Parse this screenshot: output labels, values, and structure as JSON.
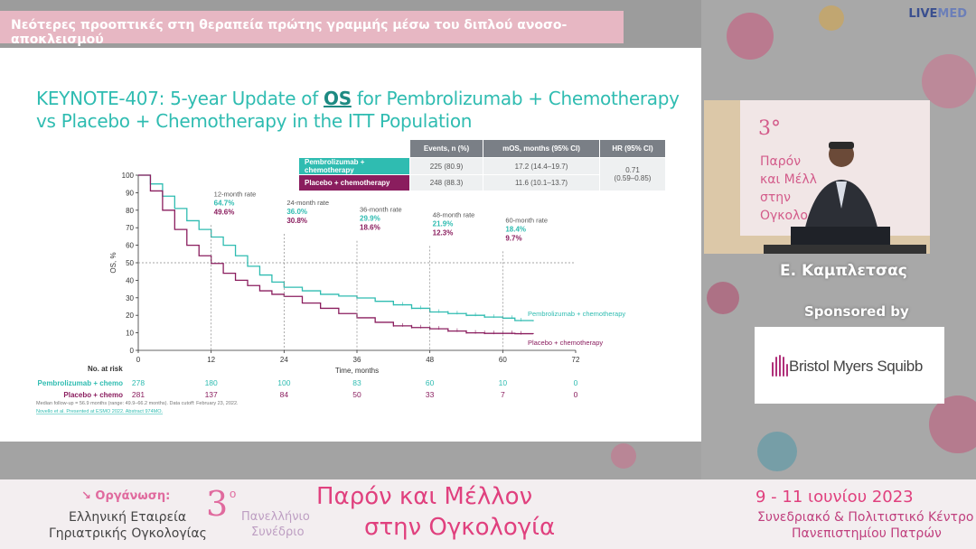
{
  "banner": {
    "title": "Νεότερες προοπτικές στη θεραπεία πρώτης γραμμής μέσω του διπλού ανοσο-αποκλεισμού"
  },
  "brand": {
    "live": "LIVE",
    "med": "MED"
  },
  "slide": {
    "title_line1_a": "KEYNOTE-407: 5-year Update of ",
    "title_os": "OS",
    "title_line1_b": " for Pembrolizumab + Chemotherapy",
    "title_line2": "vs Placebo + Chemotherapy in the ITT Population",
    "table": {
      "headers": [
        "Events, n (%)",
        "mOS, months (95% CI)",
        "HR (95% CI)"
      ],
      "rows": [
        {
          "label": "Pembrolizumab + chemotherapy",
          "events": "225 (80.9)",
          "mos": "17.2 (14.4–19.7)"
        },
        {
          "label": "Placebo + chemotherapy",
          "events": "248 (88.3)",
          "mos": "11.6 (10.1–13.7)"
        }
      ],
      "hr_value": "0.71",
      "hr_ci": "(0.59–0.85)"
    },
    "footnote1": "Median follow-up = 56.9 months (range: 49.9–66.2 months). Data cutoff: February 23, 2022.",
    "footnote2": "Novello et al. Presented at ESMO 2022. Abstract 974MO."
  },
  "chart_data": {
    "type": "line",
    "xlabel": "Time, months",
    "ylabel": "OS, %",
    "xlim": [
      0,
      72
    ],
    "ylim": [
      0,
      100
    ],
    "x_ticks": [
      0,
      12,
      24,
      36,
      48,
      60,
      72
    ],
    "y_ticks": [
      0,
      10,
      20,
      30,
      40,
      50,
      60,
      70,
      80,
      90,
      100
    ],
    "reference_line_y": 50,
    "colors": {
      "pembro": "#2fbcb1",
      "placebo": "#8a1d5e"
    },
    "series": [
      {
        "name": "Pembrolizumab + chemotherapy",
        "x": [
          0,
          2,
          4,
          6,
          8,
          10,
          12,
          14,
          16,
          18,
          20,
          22,
          24,
          27,
          30,
          33,
          36,
          39,
          42,
          45,
          48,
          51,
          54,
          57,
          60,
          62,
          65
        ],
        "y": [
          100,
          95,
          88,
          81,
          74,
          69,
          64.7,
          60,
          54,
          48,
          43,
          39,
          36.0,
          34,
          32,
          31,
          29.9,
          28,
          26,
          24,
          21.9,
          21,
          20,
          19,
          18.4,
          17,
          16.6
        ]
      },
      {
        "name": "Placebo + chemotherapy",
        "x": [
          0,
          2,
          4,
          6,
          8,
          10,
          12,
          14,
          16,
          18,
          20,
          22,
          24,
          27,
          30,
          33,
          36,
          39,
          42,
          45,
          48,
          51,
          54,
          57,
          60,
          62,
          65
        ],
        "y": [
          100,
          91,
          80,
          69,
          60,
          54,
          49.6,
          44,
          40,
          37,
          34,
          32,
          30.8,
          27,
          24,
          21,
          18.6,
          16,
          14,
          13,
          12.3,
          11,
          10,
          9.7,
          9.7,
          9.5,
          9.3
        ]
      }
    ],
    "annotations": [
      {
        "label": "12-month rate",
        "x": 12,
        "pembro": "64.7%",
        "placebo": "49.6%"
      },
      {
        "label": "24-month rate",
        "x": 24,
        "pembro": "36.0%",
        "placebo": "30.8%"
      },
      {
        "label": "36-month rate",
        "x": 36,
        "pembro": "29.9%",
        "placebo": "18.6%"
      },
      {
        "label": "48-month rate",
        "x": 48,
        "pembro": "21.9%",
        "placebo": "12.3%"
      },
      {
        "label": "60-month rate",
        "x": 60,
        "pembro": "18.4%",
        "placebo": "9.7%"
      }
    ],
    "series_labels": [
      "Pembrolizumab + chemotherapy",
      "Placebo + chemotherapy"
    ],
    "at_risk": {
      "title": "No. at risk",
      "rows": [
        {
          "label": "Pembrolizumab + chemo",
          "values": [
            278,
            180,
            100,
            83,
            60,
            10,
            0
          ]
        },
        {
          "label": "Placebo + chemo",
          "values": [
            281,
            137,
            84,
            50,
            33,
            7,
            0
          ]
        }
      ]
    }
  },
  "video": {
    "speaker": "Ε. Καμπλετσας"
  },
  "sponsor": {
    "label": "Sponsored by",
    "name": "Bristol Myers Squibb"
  },
  "footer": {
    "org_label": "↘ Οργάνωση:",
    "org_line1": "Ελληνική Εταιρεία",
    "org_line2": "Γηριατρικής Ογκολογίας",
    "congress_num": "3",
    "congress_sup": "ο",
    "congress_line1": "Πανελλήνιο",
    "congress_line2": "Συνέδριο",
    "main_line1": "Παρόν και Μέλλον",
    "main_line2": "στην Ογκολογία",
    "date": "9 - 11 ιουνίου 2023",
    "venue_line1": "Συνεδριακό & Πολιτιστικό Κέντρο",
    "venue_line2": "Πανεπιστημίου Πατρών"
  }
}
